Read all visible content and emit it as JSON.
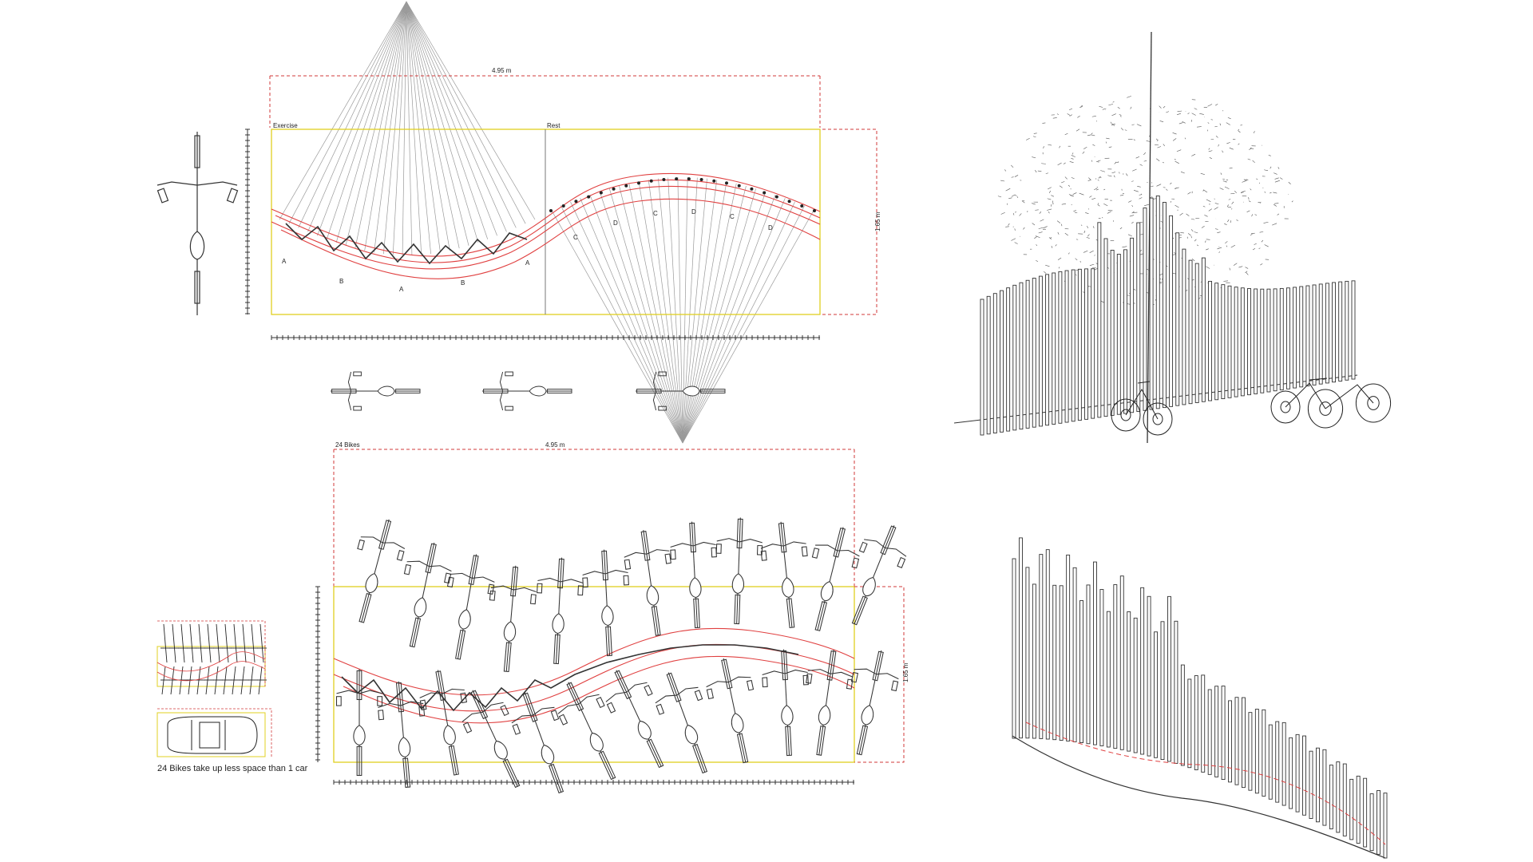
{
  "plan": {
    "overall_width": "4.95 m",
    "depth": "1.65 m",
    "zone_exercise": "Exercise",
    "zone_rest": "Rest",
    "letters_exercise": [
      "A",
      "B",
      "A",
      "B",
      "A"
    ],
    "letters_rest": [
      "C",
      "D",
      "C",
      "D",
      "C",
      "D"
    ]
  },
  "layout_plan": {
    "capacity": "24 Bikes",
    "overall_width": "4.95 m",
    "depth": "1.65 m"
  },
  "comparison": {
    "caption": "24 Bikes take up less space than 1 car"
  },
  "colors": {
    "line": "#2a2a2a",
    "construction": "#9a9a9a",
    "dimension": "#d23a3a",
    "frame": "#e0d020",
    "accent_red": "#e04040"
  }
}
